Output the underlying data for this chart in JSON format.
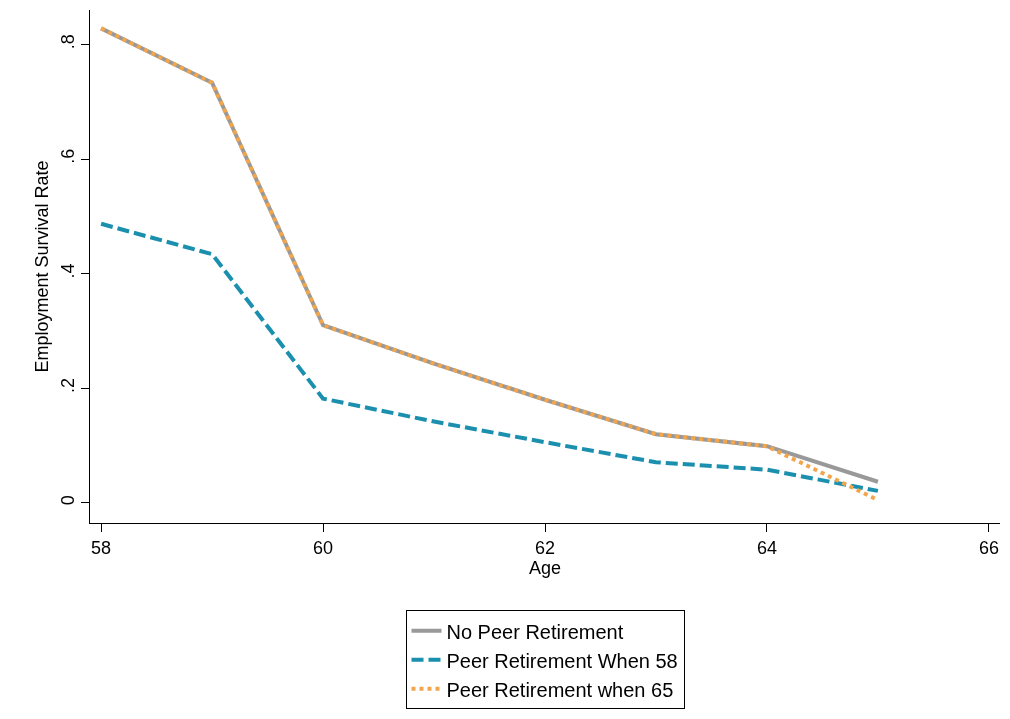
{
  "chart_data": {
    "type": "line",
    "xlabel": "Age",
    "ylabel": "Employment Survival Rate",
    "x": [
      58,
      59,
      60,
      61,
      62,
      63,
      64,
      65
    ],
    "series": [
      {
        "name": "No Peer Retirement",
        "color": "#999999",
        "line_style": "solid",
        "values": [
          0.828,
          0.733,
          0.31,
          0.243,
          0.18,
          0.12,
          0.099,
          0.037
        ]
      },
      {
        "name": "Peer Retirement When 58",
        "color": "#1a8fae",
        "line_style": "dashed",
        "values": [
          0.487,
          0.434,
          0.182,
          0.142,
          0.106,
          0.071,
          0.058,
          0.021
        ]
      },
      {
        "name": "Peer Retirement when 65",
        "color": "#f3a54b",
        "line_style": "dotted",
        "values": [
          0.828,
          0.733,
          0.31,
          0.243,
          0.18,
          0.12,
          0.099,
          0.005
        ]
      }
    ],
    "xlim": [
      57.9,
      66.1
    ],
    "xticks": [
      58,
      60,
      62,
      64,
      66
    ],
    "ylim": [
      -0.035,
      0.86
    ],
    "yticks": [
      {
        "value": 0,
        "label": "0"
      },
      {
        "value": 0.2,
        "label": ".2"
      },
      {
        "value": 0.4,
        "label": ".4"
      },
      {
        "value": 0.6,
        "label": ".6"
      },
      {
        "value": 0.8,
        "label": ".8"
      }
    ],
    "legend": "bottom",
    "marker": "none"
  }
}
